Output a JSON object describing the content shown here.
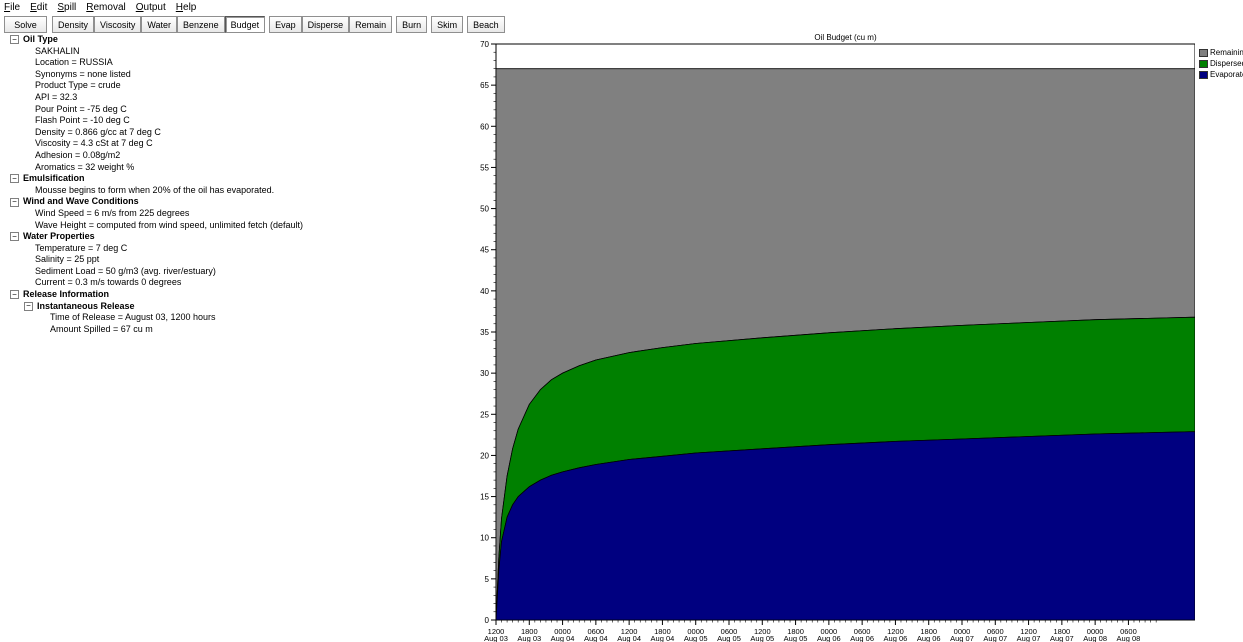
{
  "menu": [
    {
      "u": "F",
      "rest": "ile"
    },
    {
      "u": "E",
      "rest": "dit"
    },
    {
      "u": "S",
      "rest": "pill"
    },
    {
      "u": "R",
      "rest": "emoval"
    },
    {
      "u": "O",
      "rest": "utput"
    },
    {
      "u": "H",
      "rest": "elp"
    }
  ],
  "toolbar": {
    "solve": "Solve",
    "tabs": [
      "Density",
      "Viscosity",
      "Water",
      "Benzene",
      "Budget",
      "Evap",
      "Disperse",
      "Remain",
      "Burn",
      "Skim",
      "Beach"
    ],
    "selected": "Budget"
  },
  "tree": {
    "oil_type": {
      "heading": "Oil Type",
      "items": [
        "SAKHALIN",
        "Location = RUSSIA",
        "Synonyms = none listed",
        "Product Type = crude",
        "API = 32.3",
        "Pour Point = -75 deg C",
        "Flash Point = -10 deg C",
        "Density = 0.866 g/cc at 7 deg C",
        "Viscosity = 4.3 cSt at 7 deg C",
        "Adhesion = 0.08g/m2",
        "Aromatics = 32 weight %"
      ]
    },
    "emulsification": {
      "heading": "Emulsification",
      "items": [
        "Mousse begins to form when 20% of the oil has evaporated."
      ]
    },
    "wind": {
      "heading": "Wind and Wave Conditions",
      "items": [
        "Wind Speed = 6 m/s from 225 degrees",
        "Wave Height = computed from wind speed, unlimited fetch (default)"
      ]
    },
    "water": {
      "heading": "Water Properties",
      "items": [
        "Temperature = 7 deg C",
        "Salinity = 25 ppt",
        "Sediment Load = 50 g/m3 (avg. river/estuary)",
        "Current = 0.3 m/s towards 0 degrees"
      ]
    },
    "release": {
      "heading": "Release Information",
      "sub_heading": "Instantaneous Release",
      "items": [
        "Time of Release = August 03, 1200 hours",
        "Amount Spilled = 67 cu m"
      ]
    },
    "expander_symbol": "−"
  },
  "chart_data": {
    "type": "area",
    "title": "Oil Budget (cu m)",
    "xlabel": "",
    "ylabel": "",
    "ylim": [
      0,
      70
    ],
    "yticks": [
      0,
      5,
      10,
      15,
      20,
      25,
      30,
      35,
      40,
      45,
      50,
      55,
      60,
      65,
      70
    ],
    "hours": [
      0,
      0.5,
      1,
      2,
      3,
      4,
      6,
      8,
      10,
      12,
      15,
      18,
      24,
      30,
      36,
      48,
      60,
      72,
      84,
      96,
      108,
      120,
      126
    ],
    "x_ticks": [
      {
        "time": "1200",
        "date": "Aug 03"
      },
      {
        "time": "1800",
        "date": "Aug 03"
      },
      {
        "time": "0000",
        "date": "Aug 04"
      },
      {
        "time": "0600",
        "date": "Aug 04"
      },
      {
        "time": "1200",
        "date": "Aug 04"
      },
      {
        "time": "1800",
        "date": "Aug 04"
      },
      {
        "time": "0000",
        "date": "Aug 05"
      },
      {
        "time": "0600",
        "date": "Aug 05"
      },
      {
        "time": "1200",
        "date": "Aug 05"
      },
      {
        "time": "1800",
        "date": "Aug 05"
      },
      {
        "time": "0000",
        "date": "Aug 06"
      },
      {
        "time": "0600",
        "date": "Aug 06"
      },
      {
        "time": "1200",
        "date": "Aug 06"
      },
      {
        "time": "1800",
        "date": "Aug 06"
      },
      {
        "time": "0000",
        "date": "Aug 07"
      },
      {
        "time": "0600",
        "date": "Aug 07"
      },
      {
        "time": "1200",
        "date": "Aug 07"
      },
      {
        "time": "1800",
        "date": "Aug 07"
      },
      {
        "time": "0000",
        "date": "Aug 08"
      },
      {
        "time": "0600",
        "date": "Aug 08"
      }
    ],
    "series": [
      {
        "name": "Evaporated",
        "color": "#000080",
        "values": [
          0,
          6,
          9.5,
          12.5,
          14.0,
          15.0,
          16.2,
          17.0,
          17.6,
          18.0,
          18.5,
          18.9,
          19.5,
          19.9,
          20.3,
          20.8,
          21.3,
          21.7,
          22.0,
          22.3,
          22.6,
          22.8,
          22.9
        ]
      },
      {
        "name": "Dispersed",
        "color": "#008000",
        "values": [
          0,
          1.5,
          2.8,
          5.0,
          6.8,
          8.2,
          10.0,
          11.0,
          11.6,
          12.0,
          12.4,
          12.7,
          13.0,
          13.2,
          13.3,
          13.5,
          13.6,
          13.7,
          13.8,
          13.85,
          13.9,
          13.9,
          13.9
        ]
      },
      {
        "name": "Remaining",
        "color": "#808080",
        "values": [
          67,
          59.5,
          54.7,
          49.5,
          46.2,
          43.8,
          40.8,
          39.0,
          37.8,
          37.0,
          36.1,
          35.4,
          34.5,
          33.9,
          33.4,
          32.7,
          32.1,
          31.6,
          31.2,
          30.85,
          30.5,
          30.3,
          30.2
        ]
      }
    ],
    "legend_position": "right",
    "grid": false
  }
}
